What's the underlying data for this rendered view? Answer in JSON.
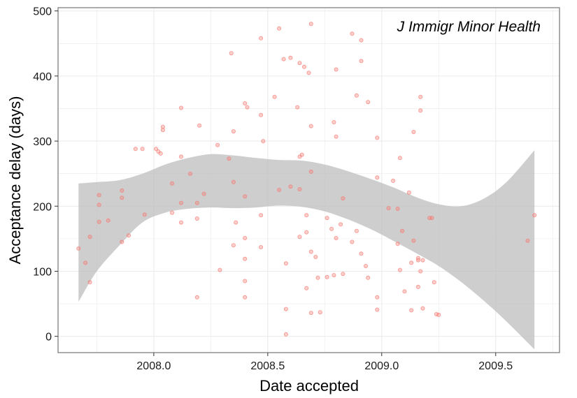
{
  "chart_data": {
    "type": "scatter",
    "title": "",
    "annotation": "J Immigr Minor Health",
    "xlabel": "Date accepted",
    "ylabel": "Acceptance delay (days)",
    "xlim": [
      2007.58,
      2009.78
    ],
    "ylim": [
      -25,
      505
    ],
    "x_ticks": [
      "2008.0",
      "2008.5",
      "2009.0",
      "2009.5"
    ],
    "y_ticks": [
      "0",
      "100",
      "200",
      "300",
      "400",
      "500"
    ],
    "grid": true,
    "colors": {
      "points": "#f8766d",
      "band": "#bdbdbd",
      "grid": "#ebebeb",
      "panel_border": "#7f7f7f"
    },
    "points": [
      [
        2007.67,
        135
      ],
      [
        2007.7,
        113
      ],
      [
        2007.72,
        153
      ],
      [
        2007.72,
        83
      ],
      [
        2007.76,
        217
      ],
      [
        2007.76,
        202
      ],
      [
        2007.76,
        176
      ],
      [
        2007.8,
        178
      ],
      [
        2007.86,
        224
      ],
      [
        2007.86,
        213
      ],
      [
        2007.86,
        145
      ],
      [
        2007.89,
        155
      ],
      [
        2007.92,
        288
      ],
      [
        2007.95,
        288
      ],
      [
        2007.96,
        187
      ],
      [
        2008.01,
        288
      ],
      [
        2008.02,
        284
      ],
      [
        2008.03,
        281
      ],
      [
        2008.04,
        322
      ],
      [
        2008.04,
        317
      ],
      [
        2008.08,
        235
      ],
      [
        2008.08,
        190
      ],
      [
        2008.12,
        351
      ],
      [
        2008.12,
        276
      ],
      [
        2008.12,
        205
      ],
      [
        2008.12,
        175
      ],
      [
        2008.16,
        250
      ],
      [
        2008.19,
        205
      ],
      [
        2008.19,
        181
      ],
      [
        2008.19,
        60
      ],
      [
        2008.2,
        324
      ],
      [
        2008.22,
        219
      ],
      [
        2008.28,
        294
      ],
      [
        2008.29,
        102
      ],
      [
        2008.33,
        273
      ],
      [
        2008.34,
        435
      ],
      [
        2008.35,
        315
      ],
      [
        2008.35,
        237
      ],
      [
        2008.35,
        140
      ],
      [
        2008.36,
        175
      ],
      [
        2008.4,
        358
      ],
      [
        2008.41,
        352
      ],
      [
        2008.4,
        215
      ],
      [
        2008.4,
        151
      ],
      [
        2008.4,
        119
      ],
      [
        2008.4,
        85
      ],
      [
        2008.4,
        60
      ],
      [
        2008.47,
        458
      ],
      [
        2008.47,
        340
      ],
      [
        2008.48,
        300
      ],
      [
        2008.47,
        186
      ],
      [
        2008.47,
        137
      ],
      [
        2008.53,
        368
      ],
      [
        2008.55,
        473
      ],
      [
        2008.55,
        225
      ],
      [
        2008.57,
        426
      ],
      [
        2008.58,
        112
      ],
      [
        2008.58,
        42
      ],
      [
        2008.58,
        3
      ],
      [
        2008.6,
        428
      ],
      [
        2008.6,
        230
      ],
      [
        2008.63,
        352
      ],
      [
        2008.64,
        420
      ],
      [
        2008.65,
        279
      ],
      [
        2008.64,
        276
      ],
      [
        2008.64,
        226
      ],
      [
        2008.64,
        153
      ],
      [
        2008.66,
        414
      ],
      [
        2008.67,
        186
      ],
      [
        2008.67,
        160
      ],
      [
        2008.67,
        74
      ],
      [
        2008.68,
        405
      ],
      [
        2008.69,
        480
      ],
      [
        2008.69,
        323
      ],
      [
        2008.69,
        253
      ],
      [
        2008.69,
        130
      ],
      [
        2008.69,
        36
      ],
      [
        2008.71,
        122
      ],
      [
        2008.72,
        90
      ],
      [
        2008.73,
        37
      ],
      [
        2008.76,
        182
      ],
      [
        2008.76,
        91
      ],
      [
        2008.78,
        165
      ],
      [
        2008.79,
        329
      ],
      [
        2008.79,
        94
      ],
      [
        2008.8,
        307
      ],
      [
        2008.8,
        410
      ],
      [
        2008.8,
        151
      ],
      [
        2008.82,
        172
      ],
      [
        2008.83,
        212
      ],
      [
        2008.83,
        96
      ],
      [
        2008.87,
        465
      ],
      [
        2008.87,
        145
      ],
      [
        2008.89,
        370
      ],
      [
        2008.89,
        162
      ],
      [
        2008.91,
        455
      ],
      [
        2008.91,
        423
      ],
      [
        2008.91,
        127
      ],
      [
        2008.93,
        108
      ],
      [
        2008.94,
        360
      ],
      [
        2008.94,
        90
      ],
      [
        2008.98,
        305
      ],
      [
        2008.98,
        244
      ],
      [
        2008.98,
        60
      ],
      [
        2008.98,
        41
      ],
      [
        2009.03,
        197
      ],
      [
        2009.05,
        239
      ],
      [
        2009.07,
        196
      ],
      [
        2009.07,
        142
      ],
      [
        2009.08,
        274
      ],
      [
        2009.08,
        102
      ],
      [
        2009.09,
        162
      ],
      [
        2009.1,
        69
      ],
      [
        2009.12,
        221
      ],
      [
        2009.13,
        113
      ],
      [
        2009.13,
        40
      ],
      [
        2009.14,
        314
      ],
      [
        2009.14,
        147
      ],
      [
        2009.16,
        120
      ],
      [
        2009.16,
        117
      ],
      [
        2009.16,
        76
      ],
      [
        2009.17,
        368
      ],
      [
        2009.17,
        347
      ],
      [
        2009.17,
        100
      ],
      [
        2009.18,
        117
      ],
      [
        2009.18,
        43
      ],
      [
        2009.21,
        182
      ],
      [
        2009.22,
        182
      ],
      [
        2009.23,
        83
      ],
      [
        2009.24,
        34
      ],
      [
        2009.25,
        33
      ],
      [
        2009.64,
        147
      ],
      [
        2009.67,
        186
      ]
    ],
    "smooth_band": [
      {
        "x": 2007.67,
        "lower": 53,
        "upper": 235
      },
      {
        "x": 2007.75,
        "lower": 100,
        "upper": 237
      },
      {
        "x": 2007.85,
        "lower": 140,
        "upper": 240
      },
      {
        "x": 2007.95,
        "lower": 175,
        "upper": 250
      },
      {
        "x": 2008.05,
        "lower": 190,
        "upper": 264
      },
      {
        "x": 2008.15,
        "lower": 196,
        "upper": 274
      },
      {
        "x": 2008.25,
        "lower": 198,
        "upper": 280
      },
      {
        "x": 2008.35,
        "lower": 197,
        "upper": 278
      },
      {
        "x": 2008.45,
        "lower": 198,
        "upper": 274
      },
      {
        "x": 2008.55,
        "lower": 201,
        "upper": 271
      },
      {
        "x": 2008.65,
        "lower": 199,
        "upper": 270
      },
      {
        "x": 2008.75,
        "lower": 192,
        "upper": 264
      },
      {
        "x": 2008.85,
        "lower": 180,
        "upper": 254
      },
      {
        "x": 2008.95,
        "lower": 165,
        "upper": 242
      },
      {
        "x": 2009.05,
        "lower": 147,
        "upper": 229
      },
      {
        "x": 2009.15,
        "lower": 128,
        "upper": 214
      },
      {
        "x": 2009.25,
        "lower": 108,
        "upper": 203
      },
      {
        "x": 2009.35,
        "lower": 83,
        "upper": 200
      },
      {
        "x": 2009.45,
        "lower": 54,
        "upper": 212
      },
      {
        "x": 2009.55,
        "lower": 22,
        "upper": 238
      },
      {
        "x": 2009.67,
        "lower": -20,
        "upper": 286
      }
    ]
  }
}
